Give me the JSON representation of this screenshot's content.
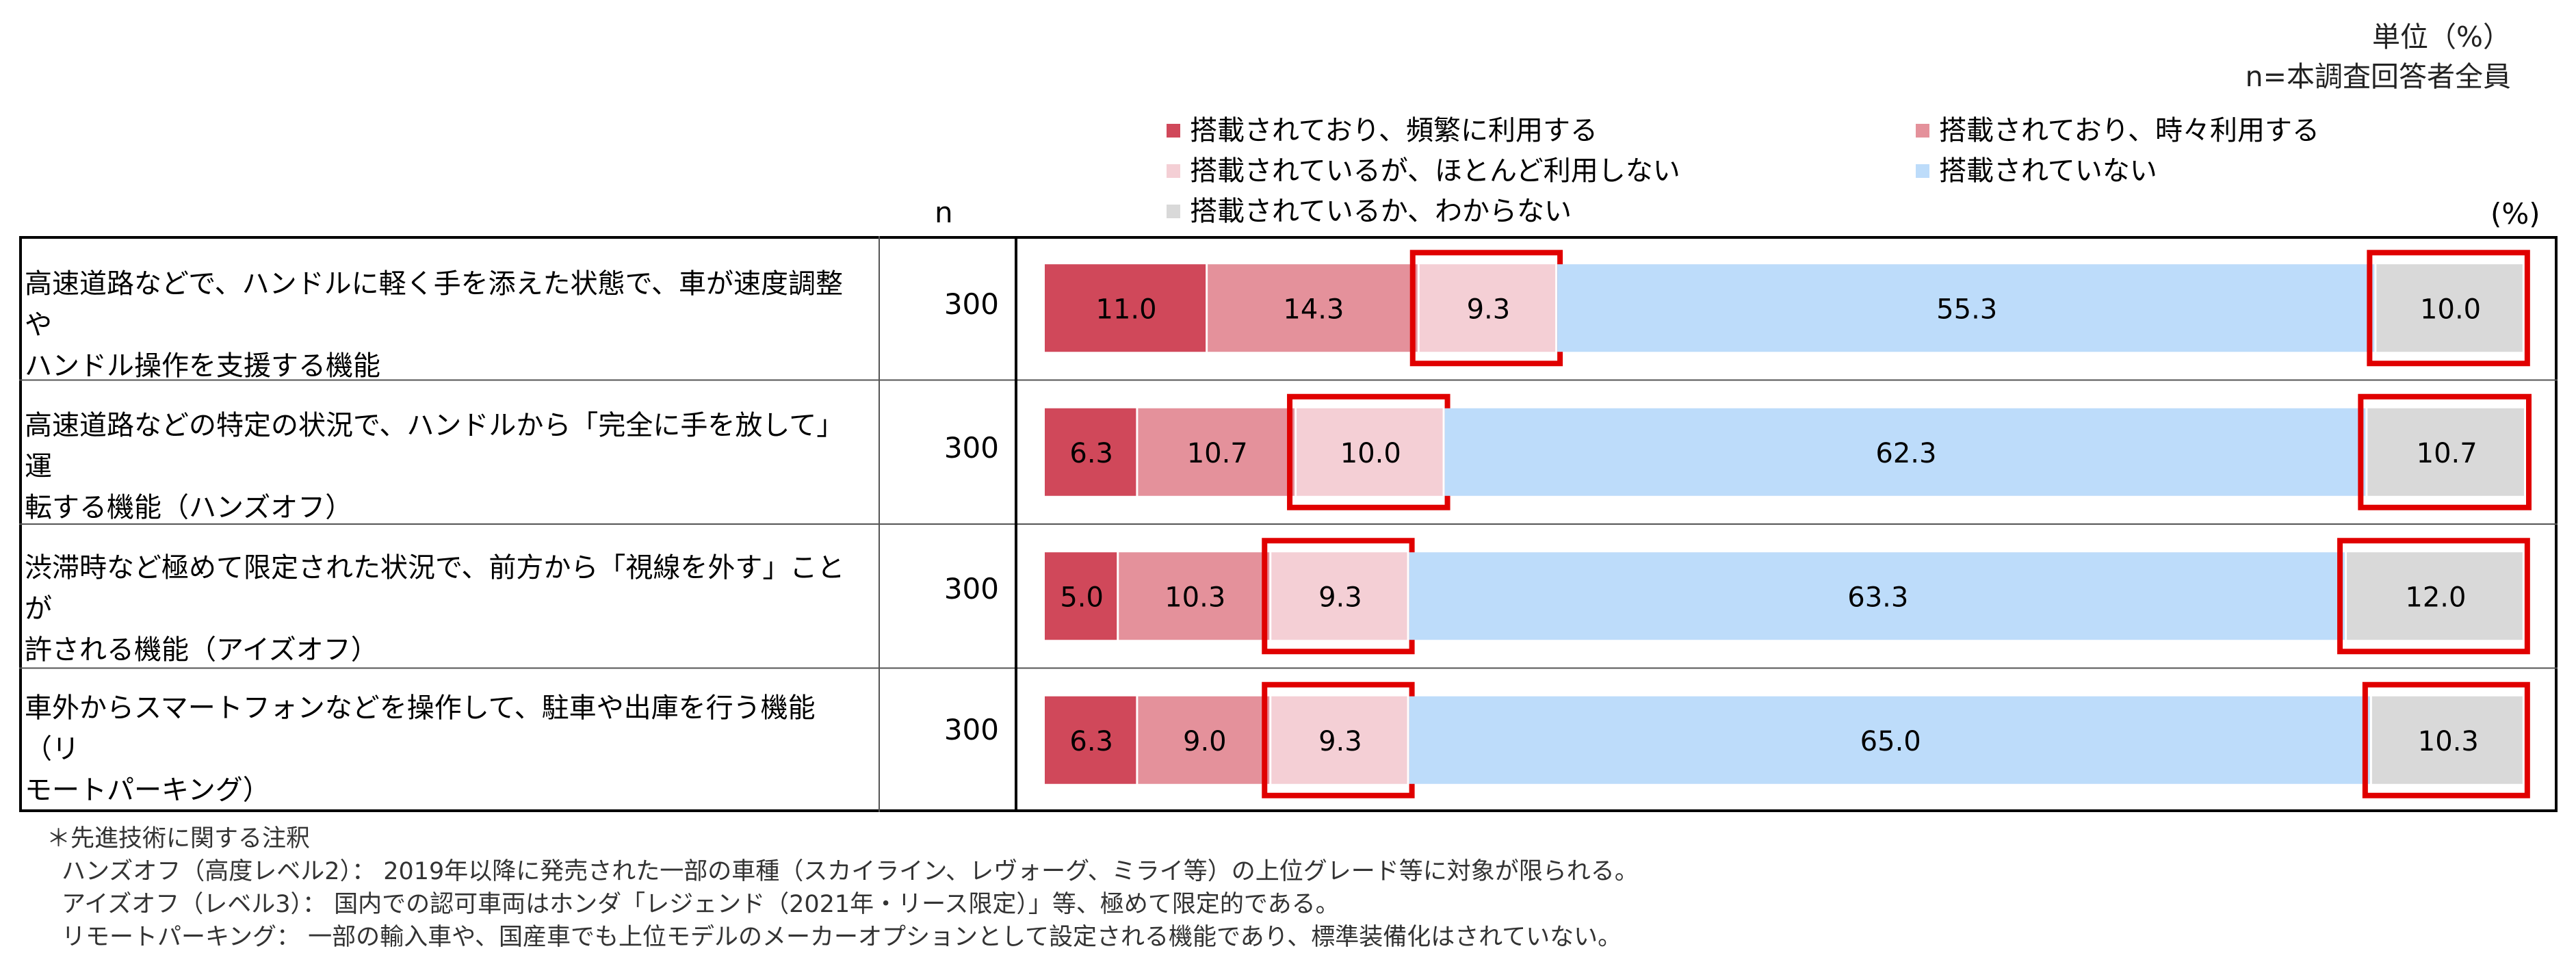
{
  "header": {
    "unit": "単位（%）",
    "sample": "n=本調査回答者全員",
    "n_label": "n",
    "pct_label": "(%)"
  },
  "colors": {
    "often": "#d0485a",
    "sometimes": "#e4919b",
    "rarely": "#f4cfd5",
    "not_equipped": "#bddcfa",
    "unknown": "#d9d9d9",
    "highlight": "#e00000"
  },
  "chart_data": {
    "type": "bar",
    "stacked": true,
    "orientation": "horizontal",
    "xlim": [
      0,
      100
    ],
    "categories": [
      "高速道路などで、ハンドルに軽く手を添えた状態で、車が速度調整やハンドル操作を支援する機能",
      "高速道路などの特定の状況で、ハンドルから「完全に手を放して」運転する機能（ハンズオフ）",
      "渋滞時など極めて限定された状況で、前方から「視線を外す」ことが許される機能（アイズオフ）",
      "車外からスマートフォンなどを操作して、駐車や出庫を行う機能（リモートパーキング）"
    ],
    "category_lines": [
      [
        "高速道路などで、ハンドルに軽く手を添えた状態で、車が速度調整や",
        "ハンドル操作を支援する機能"
      ],
      [
        "高速道路などの特定の状況で、ハンドルから「完全に手を放して」運",
        "転する機能（ハンズオフ）"
      ],
      [
        "渋滞時など極めて限定された状況で、前方から「視線を外す」ことが",
        "許される機能（アイズオフ）"
      ],
      [
        "車外からスマートフォンなどを操作して、駐車や出庫を行う機能（リ",
        "モートパーキング）"
      ]
    ],
    "n": [
      "300",
      "300",
      "300",
      "300"
    ],
    "series": [
      {
        "name": "搭載されており、頻繁に利用する",
        "values": [
          11.0,
          6.3,
          5.0,
          6.3
        ],
        "color": "#d0485a"
      },
      {
        "name": "搭載されており、時々利用する",
        "values": [
          14.3,
          10.7,
          10.3,
          9.0
        ],
        "color": "#e4919b"
      },
      {
        "name": "搭載されているが、ほとんど利用しない",
        "values": [
          9.3,
          10.0,
          9.3,
          9.3
        ],
        "color": "#f4cfd5"
      },
      {
        "name": "搭載されていない",
        "values": [
          55.3,
          62.3,
          63.3,
          65.0
        ],
        "color": "#bddcfa"
      },
      {
        "name": "搭載されているか、わからない",
        "values": [
          10.0,
          10.7,
          12.0,
          10.3
        ],
        "color": "#d9d9d9"
      }
    ],
    "value_labels": [
      [
        "11.0",
        "14.3",
        "9.3",
        "55.3",
        "10.0"
      ],
      [
        "6.3",
        "10.7",
        "10.0",
        "62.3",
        "10.7"
      ],
      [
        "5.0",
        "10.3",
        "9.3",
        "63.3",
        "12.0"
      ],
      [
        "6.3",
        "9.0",
        "9.3",
        "65.0",
        "10.3"
      ]
    ],
    "highlighted_series": [
      2,
      4
    ],
    "legend_position": "top"
  },
  "notes": [
    "＊先進技術に関する注釈",
    "ハンズオフ（高度レベル2）： 2019年以降に発売された一部の車種（スカイライン、レヴォーグ、ミライ等）の上位グレード等に対象が限られる。",
    "アイズオフ（レベル3）： 国内での認可車両はホンダ「レジェンド（2021年・リース限定）」等、極めて限定的である。",
    "リモートパーキング： 一部の輸入車や、国産車でも上位モデルのメーカーオプションとして設定される機能であり、標準装備化はされていない。"
  ]
}
